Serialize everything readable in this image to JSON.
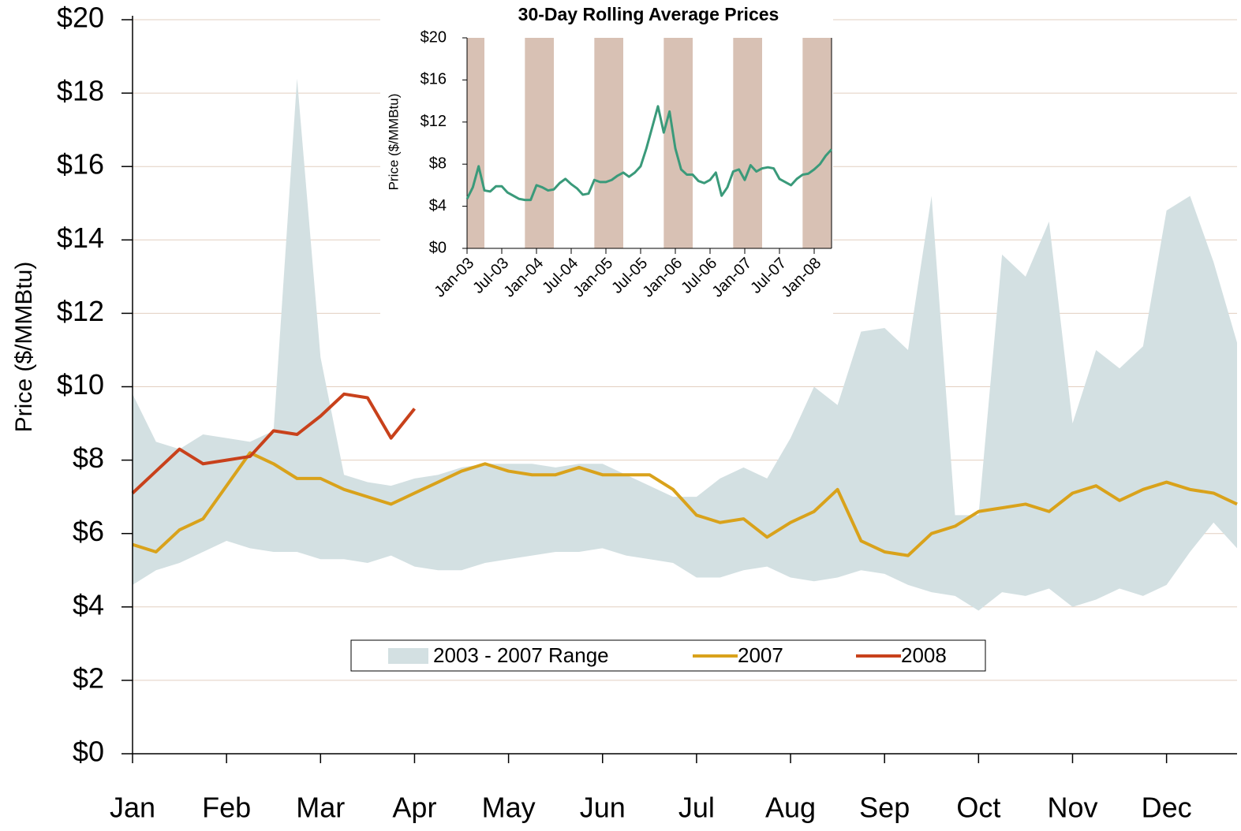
{
  "chart_data": [
    {
      "type": "line",
      "ylabel": "Price ($/MMBtu)",
      "categories": [
        "Jan",
        null,
        null,
        null,
        "Feb",
        null,
        null,
        null,
        "Mar",
        null,
        null,
        null,
        "Apr",
        null,
        null,
        null,
        "May",
        null,
        null,
        null,
        "Jun",
        null,
        null,
        null,
        "Jul",
        null,
        null,
        null,
        "Aug",
        null,
        null,
        null,
        "Sep",
        null,
        null,
        null,
        "Oct",
        null,
        null,
        null,
        "Nov",
        null,
        null,
        null,
        "Dec",
        null,
        null,
        null
      ],
      "series": [
        {
          "name": "2003 - 2007 Range",
          "color": "#d3e0e2",
          "high": [
            9.8,
            8.5,
            8.3,
            8.7,
            8.6,
            8.5,
            8.8,
            18.4,
            10.8,
            7.6,
            7.4,
            7.3,
            7.5,
            7.6,
            7.8,
            7.9,
            7.9,
            7.9,
            7.8,
            7.9,
            7.9,
            7.6,
            7.3,
            7.0,
            7.0,
            7.5,
            7.8,
            7.5,
            8.6,
            10.0,
            9.5,
            11.5,
            11.6,
            11.0,
            15.2,
            6.5,
            6.5,
            13.6,
            13.0,
            14.5,
            9.0,
            11.0,
            10.5,
            11.1,
            14.8,
            15.2,
            13.4,
            11.2
          ],
          "low": [
            4.6,
            5.0,
            5.2,
            5.5,
            5.8,
            5.6,
            5.5,
            5.5,
            5.3,
            5.3,
            5.2,
            5.4,
            5.1,
            5.0,
            5.0,
            5.2,
            5.3,
            5.4,
            5.5,
            5.5,
            5.6,
            5.4,
            5.3,
            5.2,
            4.8,
            4.8,
            5.0,
            5.1,
            4.8,
            4.7,
            4.8,
            5.0,
            4.9,
            4.6,
            4.4,
            4.3,
            3.9,
            4.4,
            4.3,
            4.5,
            4.0,
            4.2,
            4.5,
            4.3,
            4.6,
            5.5,
            6.3,
            5.6
          ]
        },
        {
          "name": "2007",
          "color": "#d9a21b",
          "values": [
            5.7,
            5.5,
            6.1,
            6.4,
            7.3,
            8.2,
            7.9,
            7.5,
            7.5,
            7.2,
            7.0,
            6.8,
            7.1,
            7.4,
            7.7,
            7.9,
            7.7,
            7.6,
            7.6,
            7.8,
            7.6,
            7.6,
            7.6,
            7.2,
            6.5,
            6.3,
            6.4,
            5.9,
            6.3,
            6.6,
            7.2,
            5.8,
            5.5,
            5.4,
            6.0,
            6.2,
            6.6,
            6.7,
            6.8,
            6.6,
            7.1,
            7.3,
            6.9,
            7.2,
            7.4,
            7.2,
            7.1,
            6.8
          ]
        },
        {
          "name": "2008",
          "color": "#c8411b",
          "values": [
            7.1,
            7.7,
            8.3,
            7.9,
            8.0,
            8.1,
            8.8,
            8.7,
            9.2,
            9.8,
            9.7,
            8.6,
            9.4,
            null,
            null,
            null,
            null,
            null,
            null,
            null,
            null,
            null,
            null,
            null,
            null,
            null,
            null,
            null,
            null,
            null,
            null,
            null,
            null,
            null,
            null,
            null,
            null,
            null,
            null,
            null,
            null,
            null,
            null,
            null,
            null,
            null,
            null,
            null
          ]
        }
      ],
      "ylim": [
        0,
        20
      ],
      "yticks": [
        {
          "value": 0,
          "label": "$0"
        },
        {
          "value": 2,
          "label": "$2"
        },
        {
          "value": 4,
          "label": "$4"
        },
        {
          "value": 6,
          "label": "$6"
        },
        {
          "value": 8,
          "label": "$8"
        },
        {
          "value": 10,
          "label": "$10"
        },
        {
          "value": 12,
          "label": "$12"
        },
        {
          "value": 14,
          "label": "$14"
        },
        {
          "value": 16,
          "label": "$16"
        },
        {
          "value": 18,
          "label": "$18"
        },
        {
          "value": 20,
          "label": "$20"
        }
      ],
      "grid": true,
      "legend": "bottom"
    },
    {
      "type": "line",
      "title": "30-Day Rolling Average Prices",
      "ylabel": "Price ($/MMBtu)",
      "categories": [
        "Jan-03",
        null,
        null,
        null,
        null,
        null,
        "Jul-03",
        null,
        null,
        null,
        null,
        null,
        "Jan-04",
        null,
        null,
        null,
        null,
        null,
        "Jul-04",
        null,
        null,
        null,
        null,
        null,
        "Jan-05",
        null,
        null,
        null,
        null,
        null,
        "Jul-05",
        null,
        null,
        null,
        null,
        null,
        "Jan-06",
        null,
        null,
        null,
        null,
        null,
        "Jul-06",
        null,
        null,
        null,
        null,
        null,
        "Jan-07",
        null,
        null,
        null,
        null,
        null,
        "Jul-07",
        null,
        null,
        null,
        null,
        null,
        "Jan-08",
        null,
        null,
        null
      ],
      "series": [
        {
          "color": "#3a9a7a",
          "values": [
            4.7,
            5.8,
            7.8,
            5.5,
            5.4,
            5.9,
            5.9,
            5.3,
            5.0,
            4.7,
            4.6,
            4.6,
            6.0,
            5.8,
            5.5,
            5.6,
            6.2,
            6.6,
            6.1,
            5.7,
            5.1,
            5.2,
            6.5,
            6.3,
            6.3,
            6.5,
            6.9,
            7.2,
            6.8,
            7.2,
            7.8,
            9.5,
            11.5,
            13.5,
            11.0,
            13.0,
            9.5,
            7.5,
            7.0,
            7.0,
            6.4,
            6.2,
            6.5,
            7.2,
            5.0,
            5.8,
            7.3,
            7.5,
            6.5,
            7.9,
            7.3,
            7.6,
            7.7,
            7.6,
            6.6,
            6.3,
            6.0,
            6.6,
            7.0,
            7.1,
            7.5,
            8.0,
            8.8,
            9.4
          ]
        }
      ],
      "band_color": "#d8c1b4",
      "ylim": [
        0,
        20
      ],
      "yticks": [
        {
          "value": 0,
          "label": "$0"
        },
        {
          "value": 4,
          "label": "$4"
        },
        {
          "value": 8,
          "label": "$8"
        },
        {
          "value": 12,
          "label": "$12"
        },
        {
          "value": 16,
          "label": "$16"
        },
        {
          "value": 20,
          "label": "$20"
        }
      ]
    }
  ]
}
